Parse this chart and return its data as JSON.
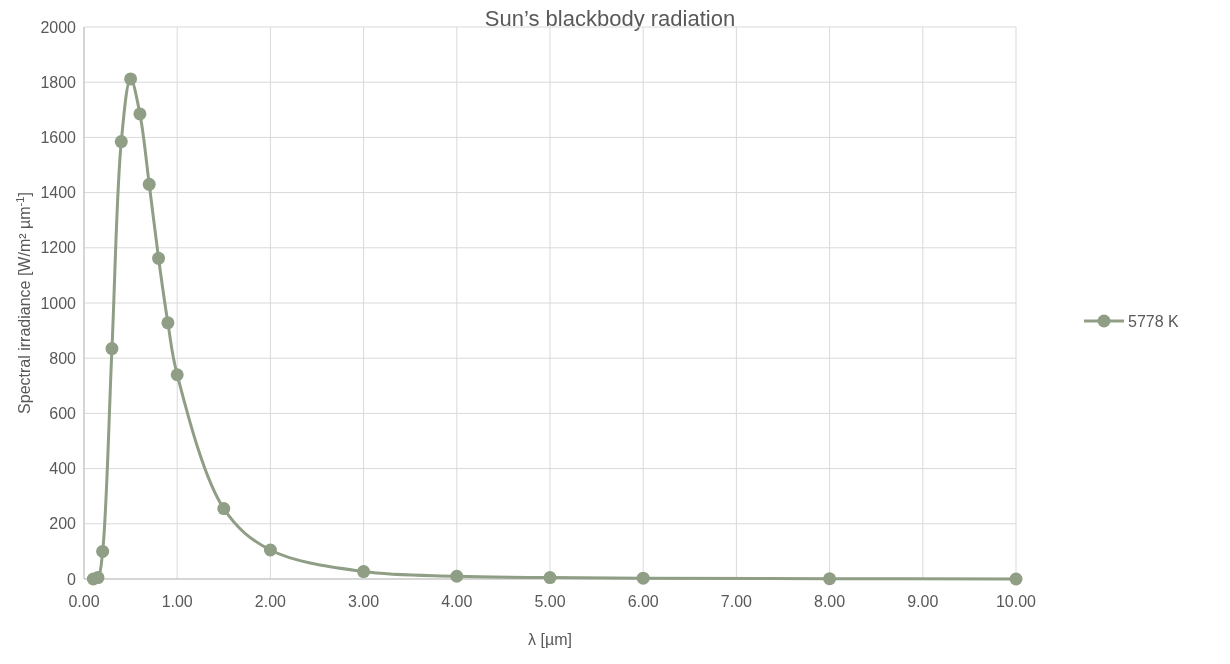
{
  "chart_data": {
    "type": "line",
    "title": "Sun’s blackbody radiation",
    "xlabel": "λ [µm]",
    "ylabel": "Spectral irradiance [W/m² µm$^{-1}$]",
    "xlim": [
      0,
      10
    ],
    "xticks": [
      {
        "value": 0,
        "label": "0.00"
      },
      {
        "value": 1,
        "label": "1.00"
      },
      {
        "value": 2,
        "label": "2.00"
      },
      {
        "value": 3,
        "label": "3.00"
      },
      {
        "value": 4,
        "label": "4.00"
      },
      {
        "value": 5,
        "label": "5.00"
      },
      {
        "value": 6,
        "label": "6.00"
      },
      {
        "value": 7,
        "label": "7.00"
      },
      {
        "value": 8,
        "label": "8.00"
      },
      {
        "value": 9,
        "label": "9.00"
      },
      {
        "value": 10,
        "label": "10.00"
      }
    ],
    "ylim": [
      0,
      2000
    ],
    "yticks": [
      0,
      200,
      400,
      600,
      800,
      1000,
      1200,
      1400,
      1600,
      1800,
      2000
    ],
    "grid": true,
    "legend": "right",
    "marker": "circle",
    "line_style": "solid",
    "x": [
      0.1,
      0.15,
      0.2,
      0.3,
      0.4,
      0.5,
      0.6,
      0.7,
      0.8,
      0.9,
      1.0,
      1.5,
      2.0,
      3.0,
      4.0,
      5.0,
      6.0,
      8.0,
      10.0
    ],
    "series": [
      {
        "name": "5778 K",
        "color": "#8f9e85",
        "values": [
          0,
          5,
          100,
          835,
          1585,
          1812,
          1685,
          1430,
          1162,
          928,
          740,
          255,
          105,
          27,
          10,
          5,
          3,
          1,
          0
        ]
      }
    ]
  }
}
